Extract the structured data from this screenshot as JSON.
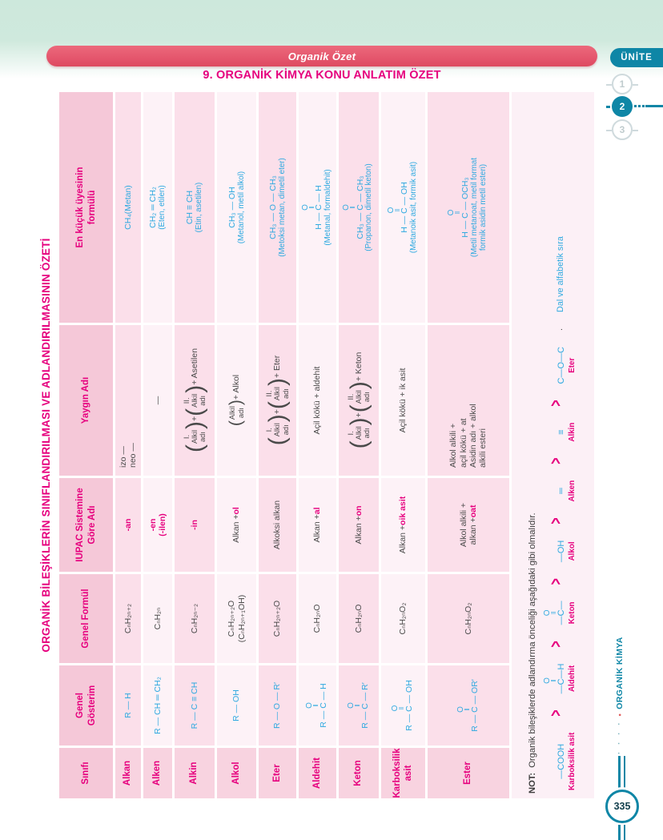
{
  "header": {
    "pill": "Organik Özet",
    "unit_tab": "ÜNİTE",
    "steps": [
      "1",
      "2",
      "3"
    ],
    "active_step": "2",
    "title": "9. ORGANİK KİMYA KONU ANLATIM ÖZET"
  },
  "side": {
    "label": "ORGANİK KİMYA",
    "dots": "· · · ·",
    "page_number": "335"
  },
  "colors": {
    "magenta": "#e6007e",
    "formula_blue": "#2ea9e0",
    "teal": "#0e86a6",
    "pill_red": "#e3536a",
    "mint": "#cde8dc",
    "header_pink": "#f5c8d8",
    "row_pink": "#fbdfea",
    "row_light": "#fdf2f7"
  },
  "table": {
    "title": "ORGANİK BİLEŞİKLERİN SINIFLANDIRILMASI VE ADLANDIRILMASININ ÖZETİ",
    "headers": [
      [
        "Sınıfı"
      ],
      [
        "Genel",
        "Gösterim"
      ],
      [
        "Genel Formül"
      ],
      [
        "IUPAC Sistemine",
        "Göre Adı"
      ],
      [
        "Yaygın Adı"
      ],
      [
        "En küçük üyesinin",
        "formülü"
      ]
    ],
    "rows": [
      {
        "name": "Alkan",
        "cells": [
          {
            "lines": [
              [
                {
                  "v": "R — H"
                }
              ]
            ]
          },
          {
            "lines": [
              [
                {
                  "v": "CₙH₂ₙ₊₂"
                }
              ]
            ]
          },
          {
            "lines": [
              [
                {
                  "v": "-an",
                  "c": "m",
                  "b": true
                }
              ]
            ]
          },
          {
            "align": "left",
            "lines": [
              [
                {
                  "v": "izo —"
                }
              ],
              [
                {
                  "v": "neo —"
                }
              ]
            ]
          },
          {
            "lines": [
              [
                {
                  "v": "CH₄(Metan)"
                }
              ]
            ]
          }
        ]
      },
      {
        "name": "Alken",
        "cells": [
          {
            "lines": [
              [
                {
                  "v": "R — CH ═ CH₂"
                }
              ]
            ]
          },
          {
            "lines": [
              [
                {
                  "v": "CₙH₂ₙ"
                }
              ]
            ]
          },
          {
            "lines": [
              [
                {
                  "v": "-en",
                  "c": "m",
                  "b": true
                }
              ],
              [
                {
                  "v": "(-ilen)",
                  "c": "m",
                  "b": true
                }
              ]
            ]
          },
          {
            "lines": [
              [
                {
                  "v": "—"
                }
              ]
            ]
          },
          {
            "lines": [
              [
                {
                  "v": "CH₂ ═ CH₂"
                }
              ],
              [
                {
                  "v": "(Eten, etilen)",
                  "sm": true
                }
              ]
            ]
          }
        ]
      },
      {
        "name": "Alkin",
        "cells": [
          {
            "lines": [
              [
                {
                  "v": "R — C ≡ CH"
                }
              ]
            ]
          },
          {
            "lines": [
              [
                {
                  "v": "CₙH₂ₙ₋₂"
                }
              ]
            ]
          },
          {
            "lines": [
              [
                {
                  "v": "-in",
                  "c": "m",
                  "b": true
                }
              ]
            ]
          },
          {
            "lines": [
              [
                {
                  "paren": [
                    "I.",
                    "Alkil",
                    "adı"
                  ]
                },
                {
                  "v": " + "
                },
                {
                  "paren": [
                    "II.",
                    "Alkil",
                    "adı"
                  ]
                },
                {
                  "v": " + Asetilen"
                }
              ]
            ]
          },
          {
            "lines": [
              [
                {
                  "v": "CH ≡ CH"
                }
              ],
              [
                {
                  "v": "(Etin, asetilen)",
                  "sm": true
                }
              ]
            ]
          }
        ]
      },
      {
        "name": "Alkol",
        "cells": [
          {
            "lines": [
              [
                {
                  "v": "R — OH"
                }
              ]
            ]
          },
          {
            "lines": [
              [
                {
                  "v": "CₙH₂ₙ₊₂O"
                }
              ],
              [
                {
                  "v": "(CₙH₂ₙ₊₁OH)"
                }
              ]
            ]
          },
          {
            "lines": [
              [
                {
                  "v": "Alkan + "
                },
                {
                  "v": "ol",
                  "c": "m",
                  "b": true
                }
              ]
            ]
          },
          {
            "lines": [
              [
                {
                  "paren": [
                    "Alkil",
                    "adı"
                  ]
                },
                {
                  "v": " + Alkol"
                }
              ]
            ]
          },
          {
            "lines": [
              [
                {
                  "v": "CH₃ — OH"
                }
              ],
              [
                {
                  "v": "(Metanol, metil alkol)",
                  "sm": true
                }
              ]
            ]
          }
        ]
      },
      {
        "name": "Eter",
        "cells": [
          {
            "lines": [
              [
                {
                  "v": "R — O — R′"
                }
              ]
            ]
          },
          {
            "lines": [
              [
                {
                  "v": "CₙH₂ₙ₊₂O"
                }
              ]
            ]
          },
          {
            "lines": [
              [
                {
                  "v": "Alkoksi alkan"
                }
              ]
            ]
          },
          {
            "lines": [
              [
                {
                  "paren": [
                    "I.",
                    "Alkil",
                    "adı"
                  ]
                },
                {
                  "v": " + "
                },
                {
                  "paren": [
                    "II.",
                    "Alkil",
                    "adı"
                  ]
                },
                {
                  "v": " + Eter"
                }
              ]
            ]
          },
          {
            "lines": [
              [
                {
                  "v": "CH₃ — O — CH₃"
                }
              ],
              [
                {
                  "v": "(Metoksi metan, dimetil eter)",
                  "sm": true
                }
              ]
            ]
          }
        ]
      },
      {
        "name": "Aldehit",
        "cells": [
          {
            "lines": [
              [
                {
                  "chem": {
                    "top": "O",
                    "f": "R — C — H",
                    "sh": 0
                  }
                }
              ]
            ]
          },
          {
            "lines": [
              [
                {
                  "v": "CₙH₂ₙO"
                }
              ]
            ]
          },
          {
            "lines": [
              [
                {
                  "v": "Alkan + "
                },
                {
                  "v": "al",
                  "c": "m",
                  "b": true
                }
              ]
            ]
          },
          {
            "lines": [
              [
                {
                  "v": "Açil kökü + aldehit"
                }
              ]
            ]
          },
          {
            "lines": [
              [
                {
                  "chem": {
                    "top": "O",
                    "f": "H — C — H",
                    "sh": 0
                  }
                }
              ],
              [
                {
                  "v": "(Metanal, formaldehit)",
                  "sm": true
                }
              ]
            ]
          }
        ]
      },
      {
        "name": "Keton",
        "cells": [
          {
            "lines": [
              [
                {
                  "chem": {
                    "top": "O",
                    "f": "R — C — R′",
                    "sh": 0
                  }
                }
              ]
            ]
          },
          {
            "lines": [
              [
                {
                  "v": "CₙH₂ₙO"
                }
              ]
            ]
          },
          {
            "lines": [
              [
                {
                  "v": "Alkan + "
                },
                {
                  "v": "on",
                  "c": "m",
                  "b": true
                }
              ]
            ]
          },
          {
            "lines": [
              [
                {
                  "paren": [
                    "I.",
                    "Alkil",
                    "adı"
                  ]
                },
                {
                  "v": " + "
                },
                {
                  "paren": [
                    "II.",
                    "Alkil",
                    "adı"
                  ]
                },
                {
                  "v": " + Keton"
                }
              ]
            ]
          },
          {
            "lines": [
              [
                {
                  "chem": {
                    "top": "O",
                    "f": "CH₃ — C — CH₃",
                    "sh": 0
                  }
                }
              ],
              [
                {
                  "v": "(Propanon, dimetil keton)",
                  "sm": true
                }
              ]
            ]
          }
        ]
      },
      {
        "name": "Karboksilik asit",
        "cells": [
          {
            "lines": [
              [
                {
                  "chem": {
                    "top": "O",
                    "f": "R — C — OH",
                    "sh": -7
                  }
                }
              ]
            ]
          },
          {
            "lines": [
              [
                {
                  "v": "CₙH₂ₙO₂"
                }
              ]
            ]
          },
          {
            "lines": [
              [
                {
                  "v": "Alkan + "
                },
                {
                  "v": "oik asit",
                  "c": "m",
                  "b": true
                }
              ]
            ]
          },
          {
            "lines": [
              [
                {
                  "v": "Açil kökü + ik asit"
                }
              ]
            ]
          },
          {
            "lines": [
              [
                {
                  "chem": {
                    "top": "O",
                    "f": "H — C — OH",
                    "sh": -7
                  }
                }
              ],
              [
                {
                  "v": "(Metanoik asit, formik asit)",
                  "sm": true
                }
              ]
            ]
          }
        ]
      },
      {
        "name": "Ester",
        "cells": [
          {
            "lines": [
              [
                {
                  "chem": {
                    "top": "O",
                    "f": "R — C — OR′",
                    "sh": -10
                  }
                }
              ]
            ]
          },
          {
            "lines": [
              [
                {
                  "v": "CₙH₂ₙO₂"
                }
              ]
            ]
          },
          {
            "lines": [
              [
                {
                  "v": "Alkol alkili +"
                }
              ],
              [
                {
                  "v": "alkan + "
                },
                {
                  "v": "oat",
                  "c": "m",
                  "b": true
                }
              ]
            ]
          },
          {
            "align": "left",
            "lines": [
              [
                {
                  "v": "Alkol alkili +"
                }
              ],
              [
                {
                  "v": "açil kökü + at"
                }
              ],
              [
                {
                  "v": "Asidin adı + alkol"
                }
              ],
              [
                {
                  "v": "alkili esteri"
                }
              ]
            ]
          },
          {
            "lines": [
              [
                {
                  "chem": {
                    "top": "O",
                    "f": "H — C — OCH₃",
                    "sh": -13
                  }
                }
              ],
              [
                {
                  "v": "(Metil metanoat, metil format",
                  "sm": true
                }
              ],
              [
                {
                  "v": "formik asidin metil esteri)",
                  "sm": true
                }
              ]
            ]
          }
        ]
      }
    ]
  },
  "note": {
    "label": "NOT:",
    "text": " Organik bileşiklerde adlandırma önceliği aşağıdaki gibi olmalıdır.",
    "separator": ">",
    "punct": ".",
    "tail": "Dal ve alfabetik sıra",
    "items": [
      {
        "f": [
          {
            "v": "—COOH"
          }
        ],
        "label": "Karboksilik asit"
      },
      {
        "f": [
          {
            "chem": {
              "top": "O",
              "f": "—C—H",
              "sh": -5
            }
          }
        ],
        "label": "Aldehit"
      },
      {
        "f": [
          {
            "chem": {
              "top": "O",
              "f": "—C—",
              "sh": 0
            }
          }
        ],
        "label": "Keton"
      },
      {
        "f": [
          {
            "v": "—OH"
          }
        ],
        "label": "Alkol"
      },
      {
        "f": [
          {
            "v": "═"
          }
        ],
        "label": "Alken"
      },
      {
        "f": [
          {
            "v": "≡"
          }
        ],
        "label": "Alkin"
      },
      {
        "f": [
          {
            "v": "C—O—C"
          }
        ],
        "label": "Eter"
      }
    ]
  }
}
